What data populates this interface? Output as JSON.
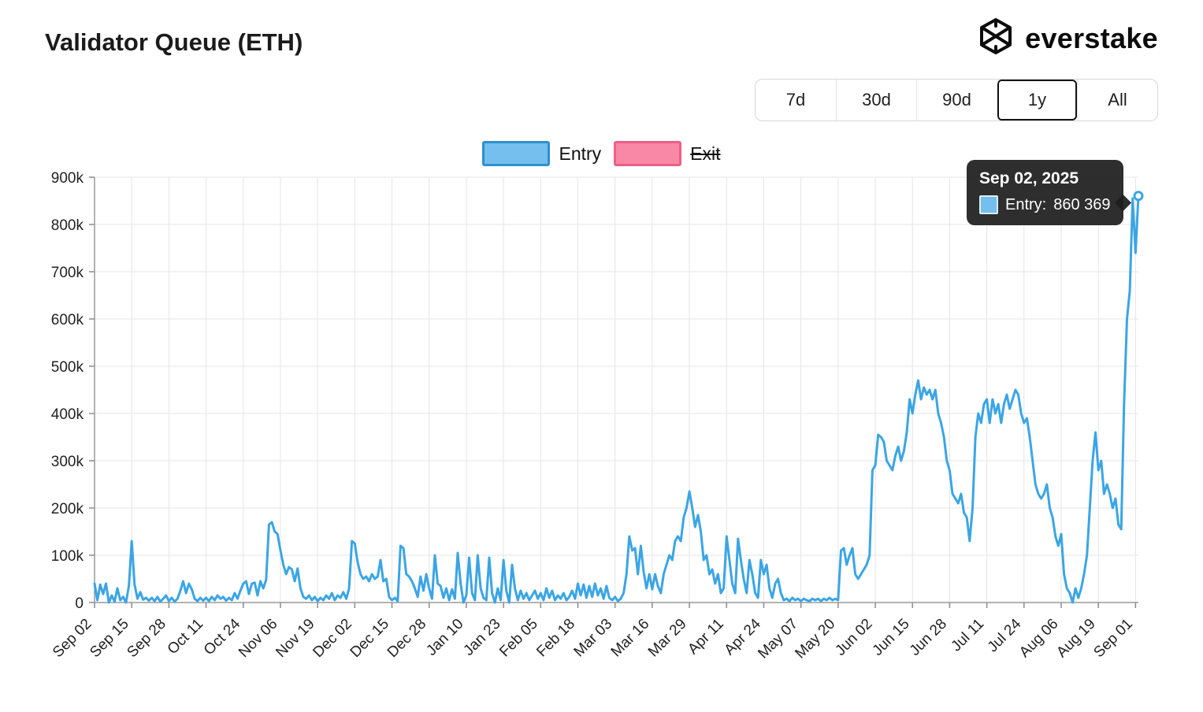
{
  "header": {
    "title": "Validator Queue (ETH)",
    "brand": "everstake"
  },
  "range_selector": {
    "options": [
      {
        "label": "7d",
        "active": false
      },
      {
        "label": "30d",
        "active": false
      },
      {
        "label": "90d",
        "active": false
      },
      {
        "label": "1y",
        "active": true
      },
      {
        "label": "All",
        "active": false
      }
    ]
  },
  "legend": {
    "items": [
      {
        "label": "Entry",
        "active": true,
        "fill": "#74bfed",
        "border": "#2e8fd0"
      },
      {
        "label": "Exit",
        "active": false,
        "fill": "#f888a5",
        "border": "#ec5f86"
      }
    ]
  },
  "tooltip": {
    "date": "Sep 02, 2025",
    "series_label": "Entry:",
    "value": "860 369",
    "swatch_color": "#74bfed"
  },
  "chart_data": {
    "type": "line",
    "title": "Validator Queue (ETH)",
    "xlabel": "",
    "ylabel": "",
    "ylim": [
      0,
      900000
    ],
    "grid": true,
    "legend_position": "top",
    "ytick_values": [
      0,
      100000,
      200000,
      300000,
      400000,
      500000,
      600000,
      700000,
      800000,
      900000
    ],
    "ytick_labels": [
      "0",
      "100k",
      "200k",
      "300k",
      "400k",
      "500k",
      "600k",
      "700k",
      "800k",
      "900k"
    ],
    "xtick_days": [
      0,
      13,
      26,
      39,
      52,
      65,
      78,
      91,
      104,
      117,
      130,
      143,
      156,
      169,
      182,
      195,
      208,
      221,
      234,
      247,
      260,
      273,
      286,
      299,
      312,
      325,
      338,
      351,
      364
    ],
    "xtick_labels": [
      "Sep 02",
      "Sep 15",
      "Sep 28",
      "Oct 11",
      "Oct 24",
      "Nov 06",
      "Nov 19",
      "Dec 02",
      "Dec 15",
      "Dec 28",
      "Jan 10",
      "Jan 23",
      "Feb 05",
      "Feb 18",
      "Mar 03",
      "Mar 16",
      "Mar 29",
      "Apr 11",
      "Apr 24",
      "May 07",
      "May 20",
      "Jun 02",
      "Jun 15",
      "Jun 28",
      "Jul 11",
      "Jul 24",
      "Aug 06",
      "Aug 19",
      "Sep 01"
    ],
    "last_point": {
      "date": "Sep 02, 2025",
      "series": "Entry",
      "value": 860369
    },
    "series": [
      {
        "name": "Entry",
        "color": "#3aa5e5",
        "visible": true,
        "daily_values": [
          40000,
          5000,
          38000,
          18000,
          40000,
          0,
          15000,
          2000,
          30000,
          5000,
          12000,
          0,
          35000,
          130000,
          38000,
          8000,
          22000,
          6000,
          10000,
          4000,
          10000,
          3000,
          12000,
          2000,
          8000,
          15000,
          3000,
          10000,
          2000,
          8000,
          25000,
          45000,
          20000,
          40000,
          28000,
          8000,
          3000,
          10000,
          4000,
          10000,
          3000,
          12000,
          5000,
          15000,
          8000,
          12000,
          4000,
          10000,
          5000,
          20000,
          8000,
          25000,
          40000,
          45000,
          18000,
          40000,
          42000,
          15000,
          45000,
          30000,
          48000,
          165000,
          170000,
          150000,
          145000,
          110000,
          80000,
          60000,
          75000,
          70000,
          45000,
          72000,
          30000,
          12000,
          8000,
          15000,
          5000,
          12000,
          3000,
          10000,
          5000,
          15000,
          8000,
          20000,
          5000,
          15000,
          10000,
          22000,
          8000,
          30000,
          130000,
          125000,
          85000,
          60000,
          50000,
          55000,
          45000,
          60000,
          50000,
          55000,
          90000,
          45000,
          50000,
          12000,
          5000,
          10000,
          3000,
          120000,
          115000,
          60000,
          55000,
          45000,
          30000,
          12000,
          55000,
          25000,
          60000,
          30000,
          8000,
          100000,
          40000,
          35000,
          10000,
          30000,
          5000,
          28000,
          8000,
          105000,
          40000,
          0,
          15000,
          95000,
          20000,
          5000,
          100000,
          30000,
          10000,
          5000,
          95000,
          20000,
          0,
          30000,
          5000,
          90000,
          25000,
          0,
          80000,
          30000,
          5000,
          25000,
          8000,
          20000,
          5000,
          15000,
          25000,
          8000,
          20000,
          5000,
          30000,
          10000,
          25000,
          5000,
          15000,
          8000,
          20000,
          5000,
          12000,
          25000,
          8000,
          40000,
          15000,
          38000,
          10000,
          35000,
          12000,
          40000,
          15000,
          30000,
          8000,
          35000,
          10000,
          5000,
          12000,
          3000,
          8000,
          20000,
          60000,
          140000,
          110000,
          115000,
          60000,
          120000,
          65000,
          30000,
          60000,
          28000,
          60000,
          35000,
          20000,
          60000,
          80000,
          100000,
          90000,
          130000,
          140000,
          130000,
          180000,
          200000,
          235000,
          200000,
          160000,
          185000,
          150000,
          90000,
          100000,
          60000,
          70000,
          40000,
          60000,
          20000,
          30000,
          140000,
          90000,
          40000,
          20000,
          135000,
          90000,
          50000,
          20000,
          90000,
          60000,
          20000,
          10000,
          90000,
          60000,
          80000,
          30000,
          10000,
          40000,
          50000,
          20000,
          5000,
          8000,
          3000,
          10000,
          5000,
          8000,
          3000,
          8000,
          5000,
          3000,
          8000,
          5000,
          8000,
          3000,
          8000,
          5000,
          10000,
          5000,
          8000,
          5000,
          110000,
          115000,
          80000,
          100000,
          115000,
          60000,
          50000,
          60000,
          70000,
          80000,
          100000,
          280000,
          290000,
          355000,
          350000,
          340000,
          300000,
          290000,
          280000,
          310000,
          330000,
          300000,
          320000,
          360000,
          430000,
          400000,
          440000,
          470000,
          430000,
          455000,
          440000,
          450000,
          430000,
          450000,
          400000,
          380000,
          350000,
          300000,
          280000,
          230000,
          220000,
          210000,
          230000,
          190000,
          180000,
          130000,
          200000,
          350000,
          400000,
          380000,
          420000,
          430000,
          380000,
          430000,
          400000,
          420000,
          380000,
          420000,
          440000,
          410000,
          430000,
          450000,
          440000,
          400000,
          380000,
          390000,
          350000,
          300000,
          250000,
          230000,
          220000,
          230000,
          250000,
          200000,
          180000,
          140000,
          120000,
          145000,
          60000,
          30000,
          20000,
          0,
          30000,
          10000,
          30000,
          60000,
          100000,
          200000,
          300000,
          360000,
          280000,
          300000,
          230000,
          250000,
          230000,
          200000,
          220000,
          165000,
          155000,
          420000,
          600000,
          660000,
          855000,
          740000,
          860369
        ]
      },
      {
        "name": "Exit",
        "color": "#ec5f86",
        "visible": false,
        "daily_values": []
      }
    ]
  }
}
